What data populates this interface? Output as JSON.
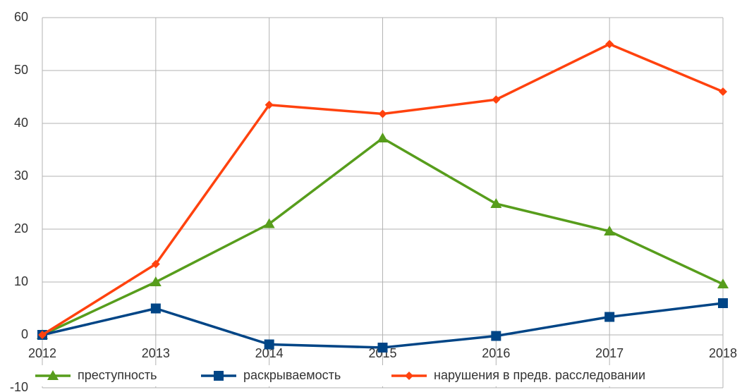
{
  "chart_data": {
    "type": "line",
    "x": [
      2012,
      2013,
      2014,
      2015,
      2016,
      2017,
      2018
    ],
    "xlim": [
      2012,
      2018
    ],
    "xticks": [
      2012,
      2013,
      2014,
      2015,
      2016,
      2017,
      2018
    ],
    "ylim": [
      -10,
      60
    ],
    "yticks": [
      -10,
      0,
      10,
      20,
      30,
      40,
      50,
      60
    ],
    "grid": true,
    "legend": "bottom",
    "series": [
      {
        "name": "преступность",
        "color": "#579d1c",
        "marker": "triangle",
        "values": [
          0,
          10,
          21,
          37.2,
          24.8,
          19.6,
          9.6
        ]
      },
      {
        "name": "раскрываемость",
        "color": "#004586",
        "marker": "square",
        "values": [
          0,
          5,
          -1.8,
          -2.4,
          -0.2,
          3.4,
          6
        ]
      },
      {
        "name": "нарушения в предв. расследовании",
        "color": "#ff420e",
        "marker": "diamond",
        "values": [
          0,
          13.4,
          43.5,
          41.8,
          44.5,
          55,
          46
        ]
      }
    ]
  }
}
